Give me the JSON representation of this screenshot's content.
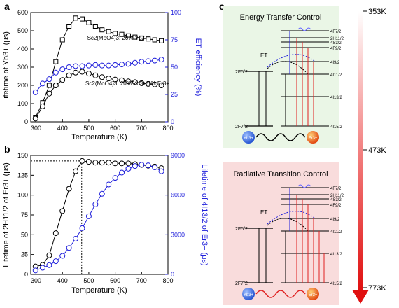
{
  "panel_labels": {
    "a": "a",
    "b": "b",
    "c": "c"
  },
  "colors": {
    "black": "#000000",
    "blue": "#1f1fdb",
    "red": "#e02020",
    "green_bg": "#eaf6e6",
    "pink_bg": "#f9dcdc",
    "yb": "#1f4fd0",
    "er": "#e0400a"
  },
  "chart_data": [
    {
      "type": "line",
      "id": "a",
      "xlabel": "Temperature (K)",
      "ylabel": "Lifetime of Yb3+ (μs)",
      "ylabel2": "ET efficiency (%)",
      "xlim": [
        280,
        800
      ],
      "ylim": [
        0,
        600
      ],
      "y2lim": [
        0,
        100
      ],
      "xticks": [
        "300",
        "400",
        "500",
        "600",
        "700",
        "800"
      ],
      "yticks": [
        "0",
        "100",
        "200",
        "300",
        "400",
        "500",
        "600"
      ],
      "y2ticks": [
        "0",
        "25",
        "50",
        "75",
        "100"
      ],
      "annotations": {
        "top": "Sc2(MoO4)3: 20% Yb3+",
        "bottom": "Sc2(MoO4)3: 20% Yb3+/1% Er3+"
      },
      "series": [
        {
          "name": "Sc2(MoO4)3: 20% Yb3+",
          "axis": "left",
          "marker": "square",
          "color": "#000000",
          "x": [
            298,
            325,
            350,
            375,
            400,
            425,
            450,
            475,
            500,
            525,
            550,
            575,
            600,
            625,
            650,
            675,
            700,
            725,
            750,
            775
          ],
          "y": [
            25,
            105,
            200,
            330,
            450,
            525,
            570,
            565,
            545,
            525,
            505,
            495,
            485,
            480,
            472,
            465,
            460,
            455,
            450,
            445
          ]
        },
        {
          "name": "Sc2(MoO4)3: 20% Yb3+/1% Er3+",
          "axis": "left",
          "marker": "circle",
          "color": "#000000",
          "x": [
            298,
            325,
            350,
            375,
            400,
            425,
            450,
            475,
            500,
            525,
            550,
            575,
            600,
            625,
            650,
            675,
            700,
            725,
            750,
            775
          ],
          "y": [
            18,
            85,
            155,
            200,
            230,
            255,
            270,
            275,
            265,
            255,
            245,
            238,
            232,
            228,
            222,
            218,
            212,
            208,
            205,
            200
          ]
        },
        {
          "name": "ET efficiency",
          "axis": "right",
          "marker": "circle",
          "color": "#1f1fdb",
          "x": [
            298,
            325,
            350,
            375,
            400,
            425,
            450,
            475,
            500,
            525,
            550,
            575,
            600,
            625,
            650,
            675,
            700,
            725,
            750,
            775
          ],
          "y": [
            27,
            35,
            39,
            45,
            48,
            50,
            51,
            51,
            51.5,
            52,
            51.5,
            51.5,
            52,
            52.5,
            53,
            54,
            55,
            55.5,
            56,
            57
          ]
        }
      ]
    },
    {
      "type": "line",
      "id": "b",
      "xlabel": "Temperature (K)",
      "ylabel": "Lifetime of 2H11/2 of Er3+ (μs)",
      "ylabel2": "Lifetime of 4I13/2 of Er3+ (μs)",
      "xlim": [
        280,
        800
      ],
      "ylim": [
        0,
        150
      ],
      "y2lim": [
        0,
        9000
      ],
      "xticks": [
        "300",
        "400",
        "500",
        "600",
        "700",
        "800"
      ],
      "yticks": [
        "0",
        "25",
        "50",
        "75",
        "100",
        "125",
        "150"
      ],
      "y2ticks": [
        "0",
        "3000",
        "6000",
        "9000"
      ],
      "reference": {
        "x": 473,
        "y": 143
      },
      "series": [
        {
          "name": "Lifetime of 2H11/2",
          "axis": "left",
          "marker": "circle",
          "color": "#000000",
          "x": [
            298,
            325,
            350,
            375,
            400,
            425,
            450,
            475,
            500,
            525,
            550,
            575,
            600,
            625,
            650,
            675,
            700,
            725,
            750,
            775
          ],
          "y": [
            10,
            12,
            24,
            52,
            80,
            108,
            130,
            143,
            142,
            141,
            141,
            141,
            140,
            140,
            140,
            139,
            138,
            137,
            136,
            134
          ]
        },
        {
          "name": "Lifetime of 4I13/2",
          "axis": "right",
          "marker": "circle",
          "color": "#1f1fdb",
          "x": [
            298,
            325,
            350,
            375,
            400,
            425,
            450,
            475,
            500,
            525,
            550,
            575,
            600,
            625,
            650,
            675,
            700,
            725,
            750,
            775
          ],
          "y": [
            300,
            500,
            700,
            1000,
            1400,
            2000,
            2700,
            3500,
            4400,
            5300,
            6100,
            6800,
            7300,
            7700,
            8000,
            8200,
            8300,
            8250,
            8100,
            7800
          ]
        }
      ]
    }
  ],
  "diagram": {
    "box1_title": "Energy Transfer Control",
    "box2_title": "Radiative Transition Control",
    "et_label": "ET",
    "yb_levels": [
      "2F5/2",
      "2F7/2"
    ],
    "er_levels": [
      "4F7/2",
      "2H11/2",
      "4S3/2",
      "4F9/2",
      "4I9/2",
      "4I11/2",
      "4I13/2",
      "4I15/2"
    ],
    "yb_ion": "Yb3+",
    "er_ion": "Er3+"
  },
  "temperature_bar": {
    "top": "353K",
    "mid": "473K",
    "bottom": "773K"
  }
}
